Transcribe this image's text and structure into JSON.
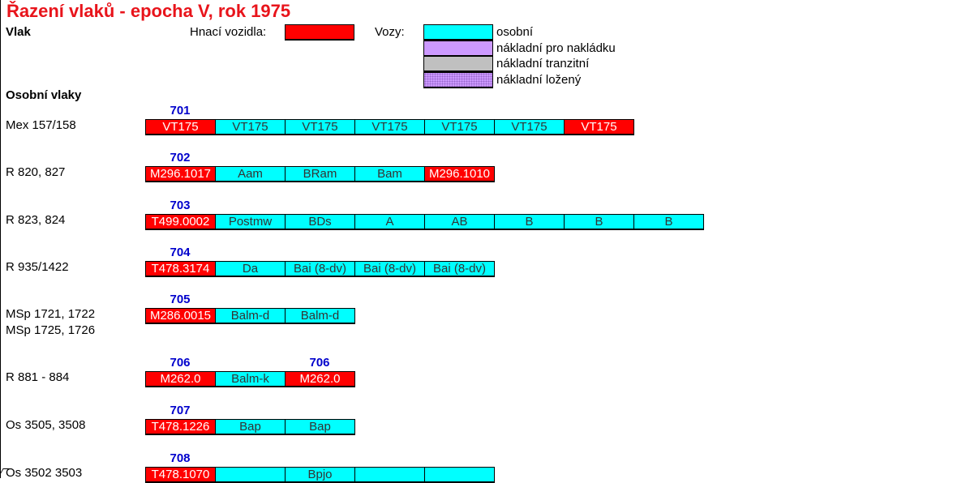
{
  "title": "Řazení vlaků - epocha V, rok 1975",
  "header": {
    "vlak_label": "Vlak",
    "hnaci_label": "Hnací vozidla:",
    "vozy_label": "Vozy:"
  },
  "legend": [
    {
      "label": "osobní",
      "color": "#00ffff"
    },
    {
      "label": "nákladní pro nakládku",
      "color": "#cc99ff"
    },
    {
      "label": "nákladní tranzitní",
      "color": "#c0c0c0"
    },
    {
      "label": "nákladní ložený",
      "color": "#cc99ff"
    }
  ],
  "colors": {
    "loco": "#ff0000",
    "car": "#00ffff",
    "tag": "#0000cc",
    "title": "#e8141b"
  },
  "section_title": "Osobní vlaky",
  "trains": [
    {
      "labels": [
        "Mex 157/158"
      ],
      "tags": [
        {
          "col": 0,
          "text": "701"
        }
      ],
      "cells": [
        {
          "text": "VT175",
          "type": "loco"
        },
        {
          "text": "VT175",
          "type": "car"
        },
        {
          "text": "VT175",
          "type": "car"
        },
        {
          "text": "VT175",
          "type": "car"
        },
        {
          "text": "VT175",
          "type": "car"
        },
        {
          "text": "VT175",
          "type": "car"
        },
        {
          "text": "VT175",
          "type": "loco"
        }
      ]
    },
    {
      "labels": [
        "R 820, 827"
      ],
      "tags": [
        {
          "col": 0,
          "text": "702"
        }
      ],
      "cells": [
        {
          "text": "M296.1017",
          "type": "loco"
        },
        {
          "text": "Aam",
          "type": "car"
        },
        {
          "text": "BRam",
          "type": "car"
        },
        {
          "text": "Bam",
          "type": "car"
        },
        {
          "text": "M296.1010",
          "type": "loco"
        }
      ]
    },
    {
      "labels": [
        "R 823, 824"
      ],
      "tags": [
        {
          "col": 0,
          "text": "703"
        }
      ],
      "cells": [
        {
          "text": "T499.0002",
          "type": "loco"
        },
        {
          "text": "Postmw",
          "type": "car"
        },
        {
          "text": "BDs",
          "type": "car"
        },
        {
          "text": "A",
          "type": "car"
        },
        {
          "text": "AB",
          "type": "car"
        },
        {
          "text": "B",
          "type": "car"
        },
        {
          "text": "B",
          "type": "car"
        },
        {
          "text": "B",
          "type": "car"
        }
      ]
    },
    {
      "labels": [
        "R 935/1422"
      ],
      "tags": [
        {
          "col": 0,
          "text": "704"
        }
      ],
      "cells": [
        {
          "text": "T478.3174",
          "type": "loco"
        },
        {
          "text": "Da",
          "type": "car"
        },
        {
          "text": "Bai (8-dv)",
          "type": "car"
        },
        {
          "text": "Bai (8-dv)",
          "type": "car"
        },
        {
          "text": "Bai (8-dv)",
          "type": "car"
        }
      ]
    },
    {
      "labels": [
        "MSp 1721, 1722",
        "MSp 1725, 1726"
      ],
      "tags": [
        {
          "col": 0,
          "text": "705"
        }
      ],
      "cells": [
        {
          "text": "M286.0015",
          "type": "loco"
        },
        {
          "text": "Balm-d",
          "type": "car"
        },
        {
          "text": "Balm-d",
          "type": "car"
        }
      ]
    },
    {
      "labels": [
        "R 881 - 884"
      ],
      "tags": [
        {
          "col": 0,
          "text": "706"
        },
        {
          "col": 2,
          "text": "706"
        }
      ],
      "cells": [
        {
          "text": "M262.0",
          "type": "loco"
        },
        {
          "text": "Balm-k",
          "type": "car"
        },
        {
          "text": "M262.0",
          "type": "loco"
        }
      ]
    },
    {
      "labels": [
        "Os 3505, 3508"
      ],
      "tags": [
        {
          "col": 0,
          "text": "707"
        }
      ],
      "cells": [
        {
          "text": "T478.1226",
          "type": "loco"
        },
        {
          "text": "Bap",
          "type": "car"
        },
        {
          "text": "Bap",
          "type": "car"
        }
      ]
    },
    {
      "labels": [
        "Os 3502 3503"
      ],
      "tags": [
        {
          "col": 0,
          "text": "708"
        }
      ],
      "cells": [
        {
          "text": "T478.1070",
          "type": "loco"
        },
        {
          "text": "",
          "type": "car"
        },
        {
          "text": "Bpjo",
          "type": "car"
        },
        {
          "text": "",
          "type": "car"
        },
        {
          "text": "",
          "type": "car"
        }
      ]
    }
  ]
}
